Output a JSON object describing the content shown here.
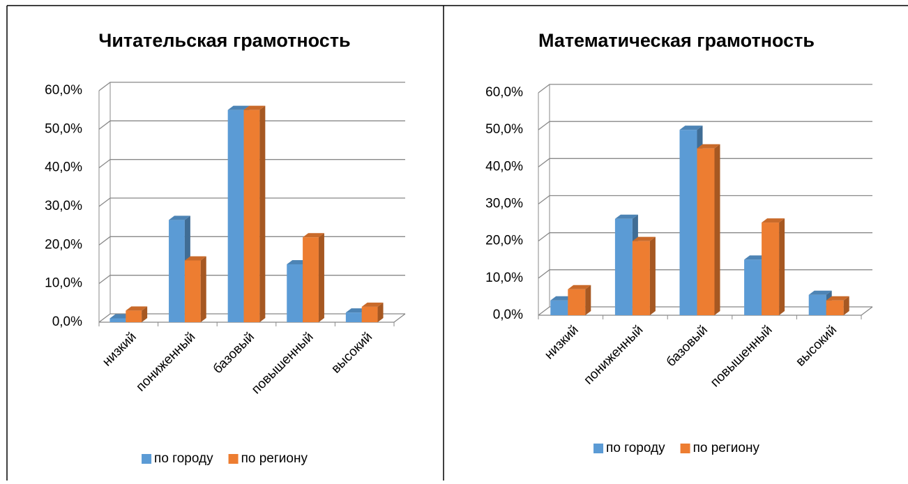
{
  "chart_data": [
    {
      "type": "bar3d",
      "title": "Читательская грамотность",
      "categories": [
        "низкий",
        "пониженный",
        "базовый",
        "повышенный",
        "высокий"
      ],
      "series": [
        {
          "name": "по городу",
          "color": "#5b9bd5",
          "values": [
            1.0,
            26.5,
            55.0,
            15.0,
            2.5
          ]
        },
        {
          "name": "по региону",
          "color": "#ed7d31",
          "values": [
            3.0,
            16.0,
            55.0,
            22.0,
            4.0
          ]
        }
      ],
      "ylim": [
        0,
        60
      ],
      "yticks": [
        {
          "value": 0,
          "label": "0,0%"
        },
        {
          "value": 10,
          "label": "10,0%"
        },
        {
          "value": 20,
          "label": "20,0%"
        },
        {
          "value": 30,
          "label": "30,0%"
        },
        {
          "value": 40,
          "label": "40,0%"
        },
        {
          "value": 50,
          "label": "50,0%"
        },
        {
          "value": 60,
          "label": "60,0%"
        }
      ],
      "grid": true,
      "legend": "bottom"
    },
    {
      "type": "bar3d",
      "title": "Математическая грамотность",
      "categories": [
        "низкий",
        "пониженный",
        "базовый",
        "повышенный",
        "высокий"
      ],
      "series": [
        {
          "name": "по городу",
          "color": "#5b9bd5",
          "values": [
            4.0,
            26.0,
            50.0,
            15.0,
            5.5
          ]
        },
        {
          "name": "по региону",
          "color": "#ed7d31",
          "values": [
            7.0,
            20.0,
            45.0,
            25.0,
            4.0
          ]
        }
      ],
      "ylim": [
        0,
        60
      ],
      "yticks": [
        {
          "value": 0,
          "label": "0,0%"
        },
        {
          "value": 10,
          "label": "10,0%"
        },
        {
          "value": 20,
          "label": "20,0%"
        },
        {
          "value": 30,
          "label": "30,0%"
        },
        {
          "value": 40,
          "label": "40,0%"
        },
        {
          "value": 50,
          "label": "50,0%"
        },
        {
          "value": 60,
          "label": "60,0%"
        }
      ],
      "grid": true,
      "legend": "bottom"
    }
  ]
}
